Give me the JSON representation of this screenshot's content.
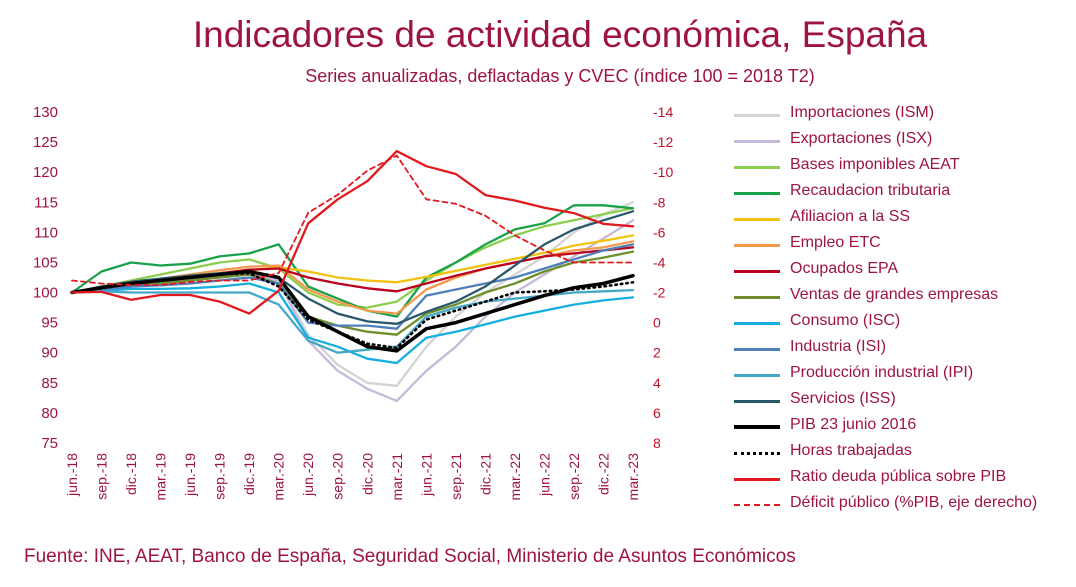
{
  "header": {
    "title": "Indicadores de actividad económica, España",
    "subtitle": "Series anualizadas, deflactadas y CVEC (índice 100 = 2018 T2)"
  },
  "footer": {
    "source": "Fuente: INE, AEAT, Banco de España, Seguridad Social, Ministerio de Asuntos Económicos"
  },
  "chart_data": {
    "type": "line",
    "title": "Indicadores de actividad económica, España",
    "subtitle": "Series anualizadas, deflactadas y CVEC (índice 100 = 2018 T2)",
    "x": [
      "jun.-18",
      "sep.-18",
      "dic.-18",
      "mar.-19",
      "jun.-19",
      "sep.-19",
      "dic.-19",
      "mar.-20",
      "jun.-20",
      "sep.-20",
      "dic.-20",
      "mar.-21",
      "jun.-21",
      "sep.-21",
      "dic.-21",
      "mar.-22",
      "jun.-22",
      "sep.-22",
      "dic.-22",
      "mar.-23"
    ],
    "y_left": {
      "min": 75,
      "max": 130,
      "ticks": [
        75,
        80,
        85,
        90,
        95,
        100,
        105,
        110,
        115,
        120,
        125,
        130
      ]
    },
    "y_right": {
      "min": 8,
      "max": -14,
      "inverted": true,
      "ticks": [
        8,
        6,
        4,
        2,
        0,
        -2,
        -4,
        -6,
        -8,
        -10,
        -12,
        -14
      ]
    },
    "grid": false,
    "legend_position": "right",
    "series": [
      {
        "name": "Importaciones (ISM)",
        "color": "#d3d3d3",
        "style": "solid",
        "axis": "left",
        "values": [
          100,
          100.5,
          101.5,
          102,
          102.5,
          103,
          103.5,
          102,
          93,
          88,
          85,
          84.5,
          91,
          96,
          100,
          103,
          106,
          110,
          113,
          115
        ]
      },
      {
        "name": "Exportaciones (ISX)",
        "color": "#c6b9d8",
        "style": "solid",
        "axis": "left",
        "values": [
          100,
          100.5,
          101,
          101.5,
          102,
          102.5,
          103,
          102,
          92,
          87,
          84,
          82,
          87,
          91,
          96,
          100,
          103,
          106,
          109,
          112
        ]
      },
      {
        "name": "Bases imponibles AEAT",
        "color": "#8ccf4f",
        "style": "solid",
        "axis": "left",
        "values": [
          100,
          101,
          102,
          103,
          104,
          105,
          105.5,
          104,
          100,
          98,
          97.5,
          98.5,
          102,
          105,
          107.5,
          109.5,
          111,
          112,
          113,
          114
        ]
      },
      {
        "name": "Recaudacion tributaria",
        "color": "#1aa14b",
        "style": "solid",
        "axis": "left",
        "values": [
          100,
          103.5,
          105,
          104.5,
          104.8,
          106,
          106.5,
          108,
          101,
          99,
          97,
          96,
          102.5,
          105,
          108,
          110.5,
          111.5,
          114.5,
          114.5,
          114
        ]
      },
      {
        "name": "Afiliacion a la SS",
        "color": "#f2c20f",
        "style": "solid",
        "axis": "left",
        "values": [
          100,
          100.8,
          101.5,
          102,
          102.6,
          103.2,
          103.7,
          104.2,
          103.5,
          102.5,
          102,
          101.7,
          102.6,
          103.6,
          104.6,
          105.6,
          106.6,
          107.8,
          108.6,
          109.5
        ]
      },
      {
        "name": "Empleo ETC",
        "color": "#f39a4e",
        "style": "solid",
        "axis": "left",
        "values": [
          100,
          100.8,
          101.6,
          102.3,
          103,
          103.7,
          104.3,
          104.5,
          100.5,
          98.5,
          97,
          96.5,
          100.5,
          102.5,
          104,
          105,
          106,
          107,
          107.5,
          108.5
        ]
      },
      {
        "name": "Ocupados EPA",
        "color": "#b8001f",
        "style": "solid",
        "axis": "left",
        "values": [
          100,
          100.6,
          101.3,
          102,
          102.6,
          103.2,
          103.8,
          104,
          102.5,
          101.5,
          100.7,
          100.2,
          101.5,
          102.8,
          104,
          105,
          106,
          106.5,
          107,
          107.5
        ]
      },
      {
        "name": "Ventas de grandes empresas",
        "color": "#6f8f2e",
        "style": "solid",
        "axis": "left",
        "values": [
          100,
          100.5,
          101,
          101.5,
          102,
          102.5,
          103,
          101.5,
          96,
          94.5,
          93.5,
          93,
          96.5,
          98,
          100,
          101.5,
          103.5,
          105,
          105.8,
          106.8
        ]
      },
      {
        "name": "Consumo (ISC)",
        "color": "#16aee0",
        "style": "solid",
        "axis": "left",
        "values": [
          100,
          100.3,
          100.6,
          100.6,
          100.7,
          101,
          101.5,
          100,
          92.5,
          91,
          89,
          88.3,
          92.5,
          93.5,
          94.7,
          96,
          97,
          98,
          98.7,
          99.2
        ]
      },
      {
        "name": "Industria (ISI)",
        "color": "#4f7fb9",
        "style": "solid",
        "axis": "left",
        "values": [
          100,
          100.5,
          101,
          101.2,
          101.5,
          102,
          102.5,
          101.5,
          95,
          94.5,
          94.5,
          94,
          99.5,
          100.5,
          101.5,
          102.5,
          104,
          105.5,
          107,
          108
        ]
      },
      {
        "name": "Producción industrial (IPI)",
        "color": "#45a8c9",
        "style": "solid",
        "axis": "left",
        "values": [
          100,
          100.2,
          100,
          100,
          100,
          100,
          100,
          98,
          92,
          90,
          90.5,
          91,
          96,
          97.5,
          98.5,
          99,
          99.5,
          100,
          100.2,
          100.4
        ]
      },
      {
        "name": "Servicios (ISS)",
        "color": "#27596b",
        "style": "solid",
        "axis": "left",
        "values": [
          100,
          101,
          101.8,
          102.3,
          102.8,
          103.2,
          103.5,
          102.5,
          99,
          96.5,
          95.2,
          94.8,
          96.8,
          98.5,
          101,
          104.5,
          108,
          110.5,
          112,
          113.5
        ]
      },
      {
        "name": "PIB 23 junio 2016",
        "color": "#000000",
        "style": "solid",
        "width": 3.5,
        "axis": "left",
        "values": [
          100,
          100.8,
          101.5,
          102,
          102.5,
          103,
          103.5,
          102.5,
          96,
          93.5,
          91,
          90.3,
          94,
          95,
          96.5,
          98,
          99.5,
          100.8,
          101.5,
          102.8
        ]
      },
      {
        "name": "Horas trabajadas",
        "color": "#000000",
        "style": "dotted",
        "axis": "left",
        "values": [
          100,
          100.7,
          101.5,
          102,
          102.5,
          103,
          103.2,
          101,
          95.5,
          93.5,
          91.5,
          90.8,
          95.5,
          97,
          98.5,
          100,
          100.2,
          100.5,
          101,
          101.7
        ]
      },
      {
        "name": "Ratio deuda pública sobre PIB",
        "color": "#e1191e",
        "style": "solid",
        "axis": "left",
        "values": [
          100,
          100.1,
          98.8,
          99.6,
          99.6,
          98.5,
          96.5,
          100.3,
          111.5,
          115.5,
          118.5,
          123.5,
          121,
          119.7,
          116.2,
          115.3,
          114.1,
          113.2,
          111.4,
          111
        ]
      },
      {
        "name": "Déficit público (%PIB, eje derecho)",
        "color": "#e1191e",
        "style": "dashed",
        "axis": "right",
        "values": [
          -2.8,
          -2.6,
          -2.5,
          -2.5,
          -2.7,
          -2.8,
          -2.8,
          -3.3,
          -7.3,
          -8.5,
          -10.1,
          -11.1,
          -8.2,
          -7.9,
          -7.1,
          -5.8,
          -4.8,
          -4,
          -4,
          -4
        ]
      }
    ]
  }
}
